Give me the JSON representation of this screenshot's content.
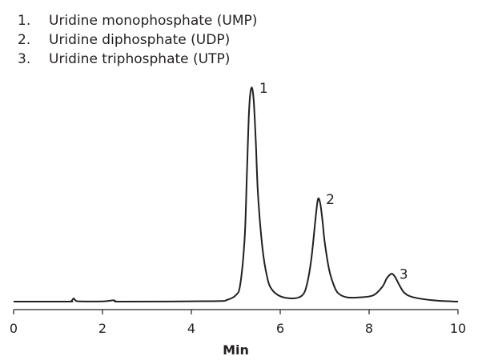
{
  "chart_data": {
    "type": "line",
    "xlabel": "Min",
    "ylabel": "",
    "xlim": [
      0,
      10
    ],
    "xticks": [
      0,
      2,
      4,
      6,
      8,
      10
    ],
    "ylim": [
      0,
      100
    ],
    "grid": false,
    "legend": [
      {
        "number": "1.",
        "label": "Uridine monophosphate (UMP)"
      },
      {
        "number": "2.",
        "label": "Uridine diphosphate (UDP)"
      },
      {
        "number": "3.",
        "label": "Uridine triphosphate (UTP)"
      }
    ],
    "peaks": [
      {
        "label": "1",
        "time": 5.35,
        "height": 100
      },
      {
        "label": "2",
        "time": 6.85,
        "height": 48
      },
      {
        "label": "3",
        "time": 8.5,
        "height": 13
      }
    ],
    "series": [
      {
        "x": [
          0.0,
          1.2,
          1.3,
          1.35,
          1.4,
          1.5,
          2.0,
          2.25,
          2.3,
          2.5,
          4.5,
          4.8,
          5.0,
          5.1,
          5.2,
          5.25,
          5.3,
          5.35,
          5.4,
          5.45,
          5.5,
          5.6,
          5.7,
          5.8,
          6.0,
          6.3,
          6.5,
          6.6,
          6.7,
          6.8,
          6.85,
          6.9,
          6.95,
          7.0,
          7.1,
          7.2,
          7.3,
          7.5,
          7.8,
          8.1,
          8.3,
          8.4,
          8.5,
          8.55,
          8.6,
          8.7,
          8.8,
          9.0,
          9.5,
          10.0
        ],
        "y": [
          0,
          0,
          0.3,
          1.5,
          0.4,
          0.1,
          0.1,
          0.6,
          0.1,
          0,
          0.2,
          0.8,
          3,
          8,
          30,
          60,
          90,
          100,
          95,
          75,
          50,
          25,
          12,
          6,
          2.5,
          1.5,
          3,
          8,
          20,
          40,
          48,
          46,
          38,
          28,
          15,
          8,
          4,
          2,
          2,
          3,
          7,
          11,
          13,
          12.5,
          11,
          7,
          4,
          2,
          0.5,
          0
        ]
      }
    ]
  }
}
